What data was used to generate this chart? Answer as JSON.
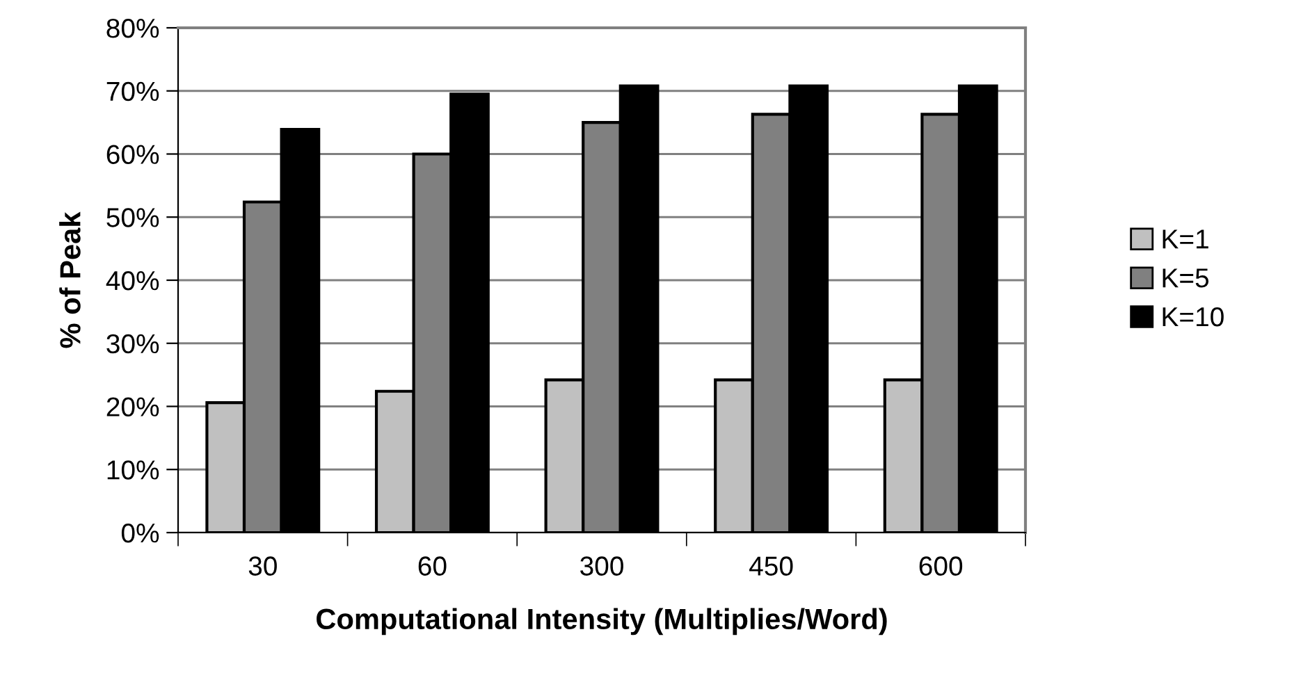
{
  "chart_data": {
    "type": "bar",
    "xlabel": "Computational Intensity (Multiplies/Word)",
    "ylabel": "% of Peak",
    "categories": [
      "30",
      "60",
      "300",
      "450",
      "600"
    ],
    "series": [
      {
        "name": "K=1",
        "color": "#c0c0c0",
        "values": [
          20.6,
          22.4,
          24.2,
          24.2,
          24.2
        ]
      },
      {
        "name": "K=5",
        "color": "#808080",
        "values": [
          52.4,
          60.0,
          65.0,
          66.3,
          66.3
        ]
      },
      {
        "name": "K=10",
        "color": "#000000",
        "values": [
          63.9,
          69.5,
          70.8,
          70.8,
          70.8
        ]
      }
    ],
    "ylim": [
      0,
      80
    ],
    "yticks": [
      {
        "value": 0,
        "label": "0%"
      },
      {
        "value": 10,
        "label": "10%"
      },
      {
        "value": 20,
        "label": "20%"
      },
      {
        "value": 30,
        "label": "30%"
      },
      {
        "value": 40,
        "label": "40%"
      },
      {
        "value": 50,
        "label": "50%"
      },
      {
        "value": 60,
        "label": "60%"
      },
      {
        "value": 70,
        "label": "70%"
      },
      {
        "value": 80,
        "label": "80%"
      }
    ],
    "grid": "y",
    "legend": "right"
  }
}
